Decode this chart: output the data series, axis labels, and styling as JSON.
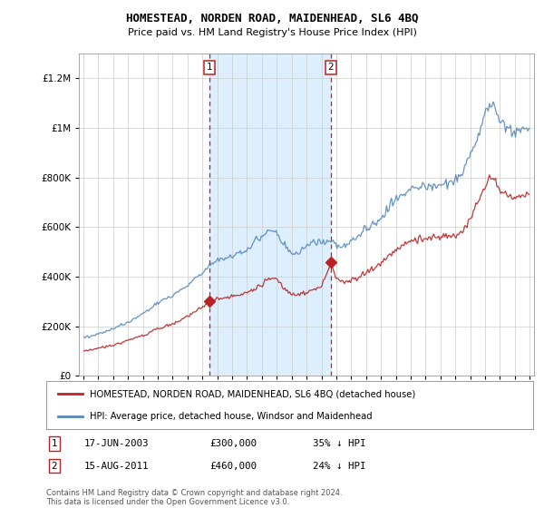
{
  "title": "HOMESTEAD, NORDEN ROAD, MAIDENHEAD, SL6 4BQ",
  "subtitle": "Price paid vs. HM Land Registry's House Price Index (HPI)",
  "legend_line1": "HOMESTEAD, NORDEN ROAD, MAIDENHEAD, SL6 4BQ (detached house)",
  "legend_line2": "HPI: Average price, detached house, Windsor and Maidenhead",
  "annotation1": {
    "num": "1",
    "date": "17-JUN-2003",
    "price": "£300,000",
    "pct": "35% ↓ HPI"
  },
  "annotation2": {
    "num": "2",
    "date": "15-AUG-2011",
    "price": "£460,000",
    "pct": "24% ↓ HPI"
  },
  "footer": "Contains HM Land Registry data © Crown copyright and database right 2024.\nThis data is licensed under the Open Government Licence v3.0.",
  "hpi_color": "#5588bb",
  "price_color": "#bb2222",
  "background_color": "#ddeeff",
  "plot_bg": "#ffffff",
  "purchase1_x": 2003.46,
  "purchase1_y": 300000,
  "purchase2_x": 2011.62,
  "purchase2_y": 460000,
  "ylim": [
    0,
    1300000
  ],
  "yticks": [
    0,
    200000,
    400000,
    600000,
    800000,
    1000000,
    1200000
  ],
  "xlim_start": 1994.7,
  "xlim_end": 2025.3,
  "xticks": [
    1995,
    1996,
    1997,
    1998,
    1999,
    2000,
    2001,
    2002,
    2003,
    2004,
    2005,
    2006,
    2007,
    2008,
    2009,
    2010,
    2011,
    2012,
    2013,
    2014,
    2015,
    2016,
    2017,
    2018,
    2019,
    2020,
    2021,
    2022,
    2023,
    2024,
    2025
  ]
}
